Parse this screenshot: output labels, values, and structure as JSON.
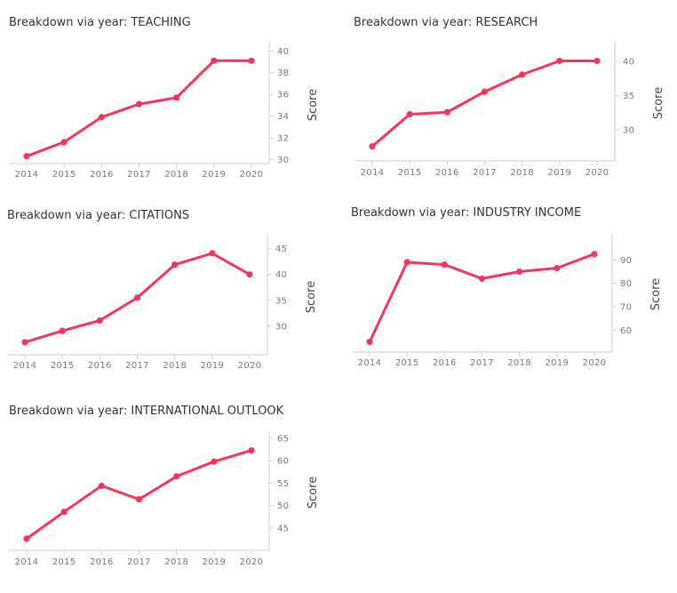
{
  "chart_data": [
    {
      "type": "line",
      "title": "Breakdown via year: TEACHING",
      "ylabel": "Score",
      "x": [
        "2014",
        "2015",
        "2016",
        "2017",
        "2018",
        "2019",
        "2020"
      ],
      "series": [
        {
          "values": [
            30.3,
            31.6,
            33.9,
            35.1,
            35.7,
            39.1,
            39.1
          ]
        }
      ],
      "ylim": [
        29.7,
        40.6
      ],
      "yticks": [
        30,
        32,
        34,
        36,
        38,
        40
      ],
      "color": "#f5365c"
    },
    {
      "type": "line",
      "title": "Breakdown via year: RESEARCH",
      "ylabel": "Score",
      "x": [
        "2014",
        "2015",
        "2016",
        "2017",
        "2018",
        "2019",
        "2020"
      ],
      "series": [
        {
          "values": [
            27.6,
            32.3,
            32.6,
            35.6,
            38.1,
            40.1,
            40.1
          ]
        }
      ],
      "ylim": [
        26.0,
        42.5
      ],
      "yticks": [
        30,
        35,
        40
      ],
      "color": "#f5365c"
    },
    {
      "type": "line",
      "title": "Breakdown via year: CITATIONS",
      "ylabel": "Score",
      "x": [
        "2014",
        "2015",
        "2016",
        "2017",
        "2018",
        "2019",
        "2020"
      ],
      "series": [
        {
          "values": [
            26.9,
            29.1,
            31.1,
            35.5,
            41.9,
            44.1,
            40.0
          ]
        }
      ],
      "ylim": [
        25.0,
        47.0
      ],
      "yticks": [
        30,
        35,
        40,
        45
      ],
      "color": "#f5365c"
    },
    {
      "type": "line",
      "title": "Breakdown via year: INDUSTRY INCOME",
      "ylabel": "Score",
      "x": [
        "2014",
        "2015",
        "2016",
        "2017",
        "2018",
        "2019",
        "2020"
      ],
      "series": [
        {
          "values": [
            55.0,
            89.0,
            88.0,
            82.0,
            85.0,
            86.5,
            92.5
          ]
        }
      ],
      "ylim": [
        51.0,
        100.0
      ],
      "yticks": [
        60,
        70,
        80,
        90
      ],
      "color": "#f5365c"
    },
    {
      "type": "line",
      "title": "Breakdown via year: INTERNATIONAL OUTLOOK",
      "ylabel": "Score",
      "x": [
        "2014",
        "2015",
        "2016",
        "2017",
        "2018",
        "2019",
        "2020"
      ],
      "series": [
        {
          "values": [
            42.6,
            48.6,
            54.4,
            51.4,
            56.5,
            59.8,
            62.3
          ]
        }
      ],
      "ylim": [
        40.0,
        66.0
      ],
      "yticks": [
        45,
        50,
        55,
        60,
        65
      ],
      "color": "#f5365c"
    }
  ]
}
